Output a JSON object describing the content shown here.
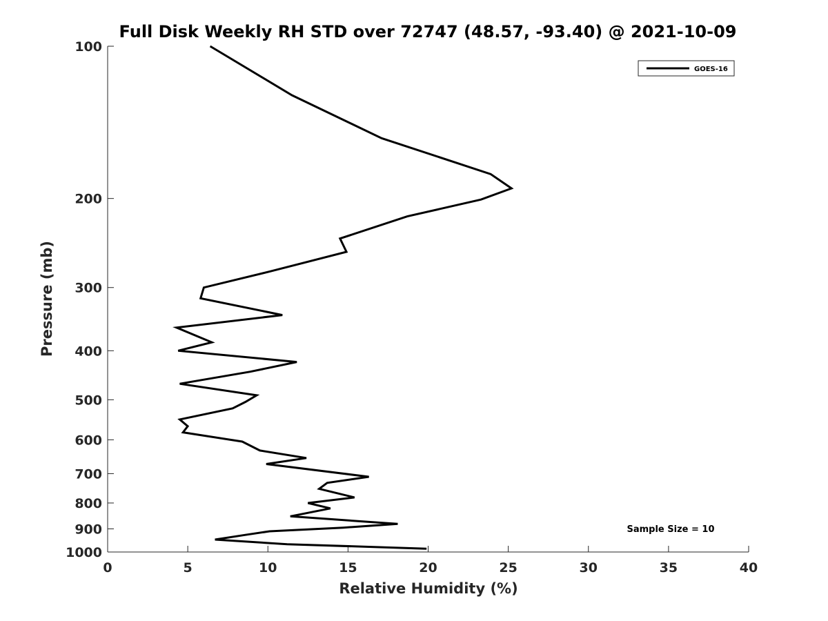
{
  "chart_data": {
    "type": "line",
    "title": "Full Disk Weekly RH STD over 72747 (48.57, -93.40) @ 2021-10-09",
    "xlabel": "Relative Humidity (%)",
    "ylabel": "Pressure (mb)",
    "xlim": [
      0,
      40
    ],
    "ylim": [
      100,
      1000
    ],
    "y_scale": "log",
    "y_reversed": true,
    "x_ticks": [
      0,
      5,
      10,
      15,
      20,
      25,
      30,
      35,
      40
    ],
    "y_ticks": [
      100,
      200,
      300,
      400,
      500,
      600,
      700,
      800,
      900,
      1000
    ],
    "grid": false,
    "legend": "top-right",
    "series": [
      {
        "name": "GOES-16",
        "color": "#000000",
        "points": [
          [
            6.4,
            100
          ],
          [
            11.5,
            125
          ],
          [
            17.1,
            152
          ],
          [
            23.9,
            179
          ],
          [
            25.2,
            191
          ],
          [
            23.3,
            201
          ],
          [
            18.7,
            217
          ],
          [
            14.5,
            240
          ],
          [
            14.9,
            255
          ],
          [
            10.1,
            279
          ],
          [
            6.0,
            300
          ],
          [
            5.8,
            315
          ],
          [
            10.9,
            340
          ],
          [
            4.3,
            360
          ],
          [
            6.5,
            385
          ],
          [
            4.4,
            400
          ],
          [
            11.8,
            421
          ],
          [
            8.9,
            440
          ],
          [
            4.5,
            465
          ],
          [
            9.3,
            490
          ],
          [
            8.6,
            505
          ],
          [
            7.8,
            520
          ],
          [
            4.5,
            547
          ],
          [
            5.0,
            564
          ],
          [
            4.7,
            580
          ],
          [
            8.4,
            605
          ],
          [
            9.5,
            630
          ],
          [
            12.4,
            652
          ],
          [
            9.9,
            670
          ],
          [
            16.3,
            710
          ],
          [
            13.7,
            730
          ],
          [
            13.2,
            750
          ],
          [
            15.4,
            780
          ],
          [
            12.5,
            800
          ],
          [
            13.9,
            820
          ],
          [
            11.4,
            850
          ],
          [
            18.1,
            880
          ],
          [
            14.7,
            895
          ],
          [
            10.1,
            910
          ],
          [
            8.6,
            925
          ],
          [
            6.7,
            945
          ],
          [
            11.2,
            965
          ],
          [
            19.9,
            985
          ]
        ]
      }
    ],
    "annotation": "Sample Size = 10"
  }
}
